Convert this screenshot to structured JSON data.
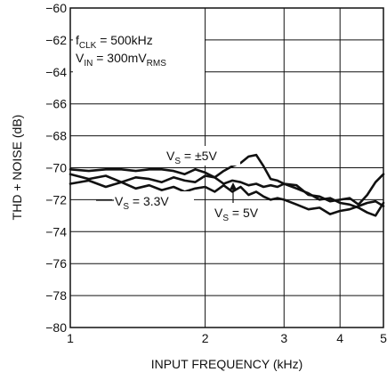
{
  "chart_data": {
    "type": "line",
    "xlabel": "INPUT FREQUENCY (kHz)",
    "ylabel": "THD + NOISE (dB)",
    "xscale": "log",
    "xlim": [
      1,
      5
    ],
    "ylim": [
      -80,
      -60
    ],
    "xticks": [
      "1",
      "2",
      "3",
      "4",
      "5"
    ],
    "yticks": [
      "-60",
      "-62",
      "-64",
      "-66",
      "-68",
      "-70",
      "-72",
      "-74",
      "-76",
      "-78",
      "-80"
    ],
    "grid": true,
    "conditions": [
      {
        "main": "f",
        "sub": "CLK",
        "rest": " = 500kHz"
      },
      {
        "main": "V",
        "sub": "IN",
        "rest": " = 300mV",
        "sub2": "RMS"
      }
    ],
    "labels": {
      "pm5": {
        "main": "V",
        "sub": "S",
        "rest": " = ±5V"
      },
      "v33": {
        "main": "V",
        "sub": "S",
        "rest": " = 3.3V"
      },
      "v5": {
        "main": "V",
        "sub": "S",
        "rest": " = 5V"
      }
    },
    "series": [
      {
        "id": "pm5",
        "x": [
          1.0,
          1.1,
          1.2,
          1.3,
          1.4,
          1.5,
          1.6,
          1.7,
          1.8,
          1.9,
          2.0,
          2.1,
          2.2,
          2.3,
          2.4,
          2.5,
          2.6,
          2.7,
          2.8,
          2.9,
          3.0,
          3.2,
          3.4,
          3.6,
          3.8,
          4.0,
          4.2,
          4.4,
          4.6,
          4.8,
          5.0
        ],
        "y": [
          -70.1,
          -70.2,
          -70.1,
          -70.1,
          -70.2,
          -70.1,
          -70.1,
          -70.2,
          -70.4,
          -70.1,
          -70.3,
          -70.6,
          -70.2,
          -69.9,
          -69.7,
          -69.3,
          -69.2,
          -69.9,
          -70.7,
          -70.8,
          -71.0,
          -71.1,
          -71.7,
          -71.8,
          -72.1,
          -72.0,
          -71.9,
          -72.3,
          -71.7,
          -70.9,
          -70.4
        ]
      },
      {
        "id": "v33",
        "x": [
          1.0,
          1.1,
          1.2,
          1.3,
          1.4,
          1.5,
          1.6,
          1.7,
          1.8,
          1.9,
          2.0,
          2.1,
          2.2,
          2.3,
          2.4,
          2.5,
          2.6,
          2.7,
          2.8,
          2.9,
          3.0,
          3.2,
          3.4,
          3.6,
          3.8,
          4.0,
          4.2,
          4.4,
          4.6,
          4.8,
          5.0
        ],
        "y": [
          -70.4,
          -70.7,
          -70.5,
          -70.9,
          -70.6,
          -70.7,
          -70.9,
          -70.6,
          -70.8,
          -70.9,
          -70.5,
          -70.6,
          -71.0,
          -70.8,
          -70.9,
          -71.1,
          -71.0,
          -71.2,
          -71.1,
          -71.2,
          -71.0,
          -71.3,
          -71.6,
          -72.0,
          -71.9,
          -72.2,
          -72.3,
          -72.5,
          -72.8,
          -73.0,
          -72.2
        ]
      },
      {
        "id": "v5",
        "x": [
          1.0,
          1.1,
          1.2,
          1.3,
          1.4,
          1.5,
          1.6,
          1.7,
          1.8,
          1.9,
          2.0,
          2.1,
          2.2,
          2.3,
          2.4,
          2.5,
          2.6,
          2.7,
          2.8,
          2.9,
          3.0,
          3.2,
          3.4,
          3.6,
          3.8,
          4.0,
          4.2,
          4.4,
          4.6,
          4.8,
          5.0
        ],
        "y": [
          -71.0,
          -70.8,
          -71.2,
          -70.9,
          -71.3,
          -71.1,
          -71.4,
          -71.2,
          -71.5,
          -71.3,
          -71.2,
          -71.5,
          -71.1,
          -71.5,
          -71.2,
          -71.7,
          -71.5,
          -71.8,
          -72.0,
          -71.9,
          -72.0,
          -72.3,
          -72.6,
          -72.5,
          -72.9,
          -72.7,
          -72.6,
          -72.4,
          -72.2,
          -72.1,
          -72.4
        ]
      }
    ]
  }
}
